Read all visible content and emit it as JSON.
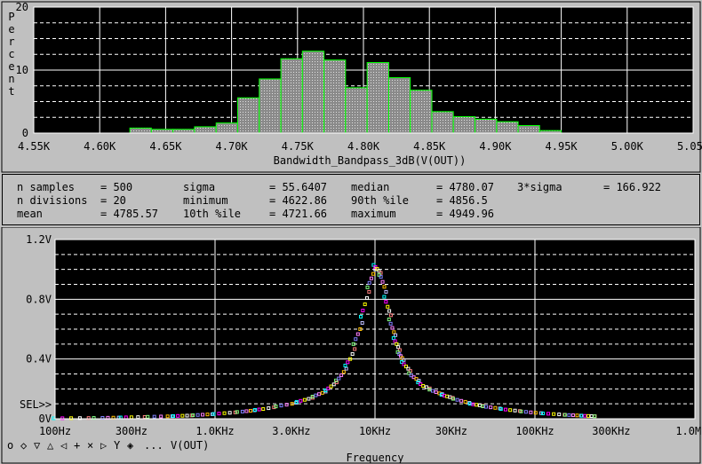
{
  "histogram": {
    "y_axis_label_letters": [
      "P",
      "e",
      "r",
      "c",
      "e",
      "n",
      "t"
    ],
    "y_ticks": [
      "20",
      "10",
      "0"
    ],
    "x_ticks": [
      "4.55K",
      "4.60K",
      "4.65K",
      "4.70K",
      "4.75K",
      "4.80K",
      "4.85K",
      "4.90K",
      "4.95K",
      "5.00K",
      "5.05K"
    ],
    "x_label": "Bandwidth_Bandpass_3dB(V(OUT))"
  },
  "stats": {
    "rows": [
      [
        {
          "label": "n samples",
          "value": "500"
        },
        {
          "label": "sigma",
          "value": "55.6407"
        },
        {
          "label": "median",
          "value": "4780.07"
        },
        {
          "label": "3*sigma",
          "value": "166.922"
        }
      ],
      [
        {
          "label": "n divisions",
          "value": "20"
        },
        {
          "label": "minimum",
          "value": "4622.86"
        },
        {
          "label": "90th %ile",
          "value": "4856.5"
        }
      ],
      [
        {
          "label": "mean",
          "value": "4785.57"
        },
        {
          "label": "10th %ile",
          "value": "4721.66"
        },
        {
          "label": "maximum",
          "value": "4949.96"
        }
      ]
    ]
  },
  "freq_plot": {
    "y_ticks": [
      "1.2V",
      "0.8V",
      "0.4V",
      "0V"
    ],
    "sel_marker": "SEL>>",
    "x_ticks": [
      "100Hz",
      "300Hz",
      "1.0KHz",
      "3.0KHz",
      "10KHz",
      "30KHz",
      "100KHz",
      "300KHz",
      "1.0MHz"
    ],
    "legend_ellipsis": "...",
    "legend_trace": "V(OUT)",
    "x_label": "Frequency",
    "marker_colors": [
      "#00ffff",
      "#ff00ff",
      "#ffff00",
      "#ffffff",
      "#ff8080",
      "#80ff80",
      "#8080ff",
      "#ff80ff",
      "#ffc000",
      "#c0c0ff"
    ]
  },
  "chart_data": [
    {
      "type": "bar",
      "xlabel": "Bandwidth_Bandpass_3dB(V(OUT))",
      "ylabel": "Percent",
      "xlim": [
        4550,
        5050
      ],
      "ylim": [
        0,
        20
      ],
      "grid": true,
      "bins": [
        {
          "start": 4622.86,
          "end": 4639.2,
          "value": 0.8
        },
        {
          "start": 4639.2,
          "end": 4655.6,
          "value": 0.6
        },
        {
          "start": 4655.6,
          "end": 4671.9,
          "value": 0.6
        },
        {
          "start": 4671.9,
          "end": 4688.3,
          "value": 1.0
        },
        {
          "start": 4688.3,
          "end": 4704.6,
          "value": 1.6
        },
        {
          "start": 4704.6,
          "end": 4721.0,
          "value": 5.6
        },
        {
          "start": 4721.0,
          "end": 4737.4,
          "value": 8.6
        },
        {
          "start": 4737.4,
          "end": 4753.7,
          "value": 11.8
        },
        {
          "start": 4753.7,
          "end": 4770.1,
          "value": 13.0
        },
        {
          "start": 4770.1,
          "end": 4786.4,
          "value": 11.6
        },
        {
          "start": 4786.4,
          "end": 4802.8,
          "value": 7.2
        },
        {
          "start": 4802.8,
          "end": 4819.2,
          "value": 11.2
        },
        {
          "start": 4819.2,
          "end": 4835.5,
          "value": 8.8
        },
        {
          "start": 4835.5,
          "end": 4851.9,
          "value": 6.8
        },
        {
          "start": 4851.9,
          "end": 4868.2,
          "value": 3.4
        },
        {
          "start": 4868.2,
          "end": 4884.6,
          "value": 2.6
        },
        {
          "start": 4884.6,
          "end": 4901.0,
          "value": 2.2
        },
        {
          "start": 4901.0,
          "end": 4917.3,
          "value": 1.8
        },
        {
          "start": 4917.3,
          "end": 4933.6,
          "value": 1.2
        },
        {
          "start": 4933.6,
          "end": 4949.96,
          "value": 0.4
        }
      ]
    },
    {
      "type": "scatter",
      "xlabel": "Frequency",
      "xscale": "log",
      "xlim": [
        100,
        1000000
      ],
      "ylim": [
        0,
        1.2
      ],
      "grid": true,
      "series": [
        {
          "name": "V(OUT)",
          "x": [
            100,
            200,
            300,
            500,
            700,
            1000,
            1500,
            2000,
            3000,
            4000,
            5000,
            6000,
            7000,
            8000,
            9000,
            10000,
            11000,
            12000,
            13000,
            14000,
            15000,
            17000,
            20000,
            25000,
            30000,
            40000,
            50000,
            70000,
            100000,
            150000,
            200000,
            250000
          ],
          "y": [
            0.003,
            0.006,
            0.01,
            0.016,
            0.022,
            0.032,
            0.048,
            0.065,
            0.1,
            0.14,
            0.19,
            0.27,
            0.4,
            0.6,
            0.85,
            1.03,
            0.95,
            0.75,
            0.58,
            0.46,
            0.38,
            0.29,
            0.22,
            0.17,
            0.14,
            0.1,
            0.08,
            0.058,
            0.04,
            0.027,
            0.02,
            0.016
          ]
        }
      ]
    }
  ]
}
